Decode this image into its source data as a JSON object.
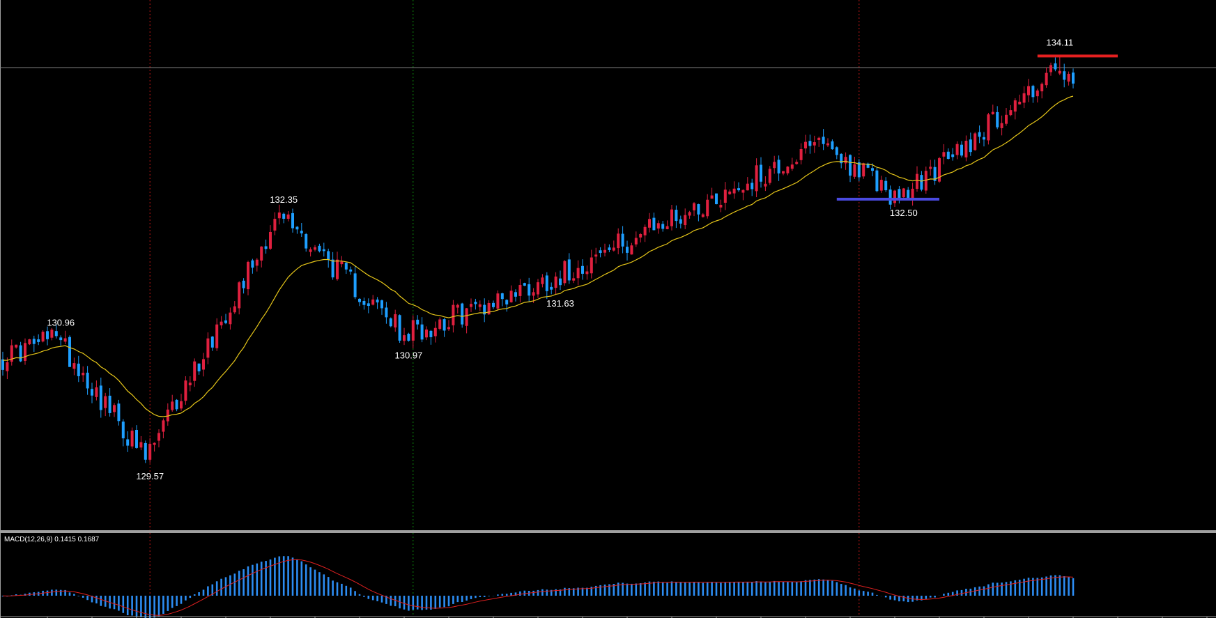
{
  "colors": {
    "background": "#000000",
    "bull_candle": "#e0203f",
    "bear_candle": "#1e9fff",
    "moving_average": "#e6c619",
    "macd_histogram": "#2c8cf2",
    "macd_signal": "#e02020",
    "resistance_line": "#e52020",
    "support_line": "#4a4ae0",
    "price_line": "#808080",
    "separator": "#a0a0a0",
    "vline_red": "#c01818",
    "vline_green": "#0c8a0c",
    "label": "#ffffff"
  },
  "chart_data": [
    {
      "type": "candlestick",
      "title": "",
      "ylim": [
        129.2,
        134.45
      ],
      "current_price": 133.98,
      "ma_start": 130.7,
      "seed": 17,
      "legs": [
        {
          "bars": 13,
          "close": 130.96
        },
        {
          "bars": 20,
          "close": 129.57
        },
        {
          "bars": 30,
          "close": 132.35
        },
        {
          "bars": 28,
          "close": 130.97
        },
        {
          "bars": 34,
          "close": 131.63
        },
        {
          "bars": 60,
          "close": 133.12
        },
        {
          "bars": 17,
          "close": 132.5
        },
        {
          "bars": 35,
          "close": 133.96
        },
        {
          "bars": 4,
          "close": 133.8
        }
      ],
      "annotations": [
        {
          "text": "130.96",
          "price": 130.96,
          "bar": 13,
          "pos": "above"
        },
        {
          "text": "129.57",
          "price": 129.57,
          "bar": 33,
          "pos": "below"
        },
        {
          "text": "132.35",
          "price": 132.35,
          "bar": 63,
          "pos": "above"
        },
        {
          "text": "130.97",
          "price": 130.97,
          "bar": 91,
          "pos": "below"
        },
        {
          "text": "131.63",
          "price": 131.63,
          "bar": 125,
          "pos": "below"
        },
        {
          "text": "132.50",
          "price": 132.5,
          "bar": 202,
          "pos": "below"
        },
        {
          "text": "134.11",
          "price": 134.11,
          "bar": 237,
          "pos": "above"
        }
      ],
      "support": {
        "price": 132.5,
        "from_bar": 187,
        "to_bar": 210
      },
      "resistance": {
        "price": 134.11,
        "from_bar": 232,
        "to_bar": 250
      },
      "vertical_markers": [
        {
          "bar": 33,
          "color": "red"
        },
        {
          "bar": 92,
          "color": "green"
        },
        {
          "bar": 192,
          "color": "red"
        }
      ]
    },
    {
      "type": "bar",
      "title": "MACD(12,26,9) 0.1415 0.1687",
      "indicator": "MACD",
      "params": [
        12,
        26,
        9
      ],
      "macd_value": 0.1415,
      "signal_value": 0.1687
    }
  ]
}
